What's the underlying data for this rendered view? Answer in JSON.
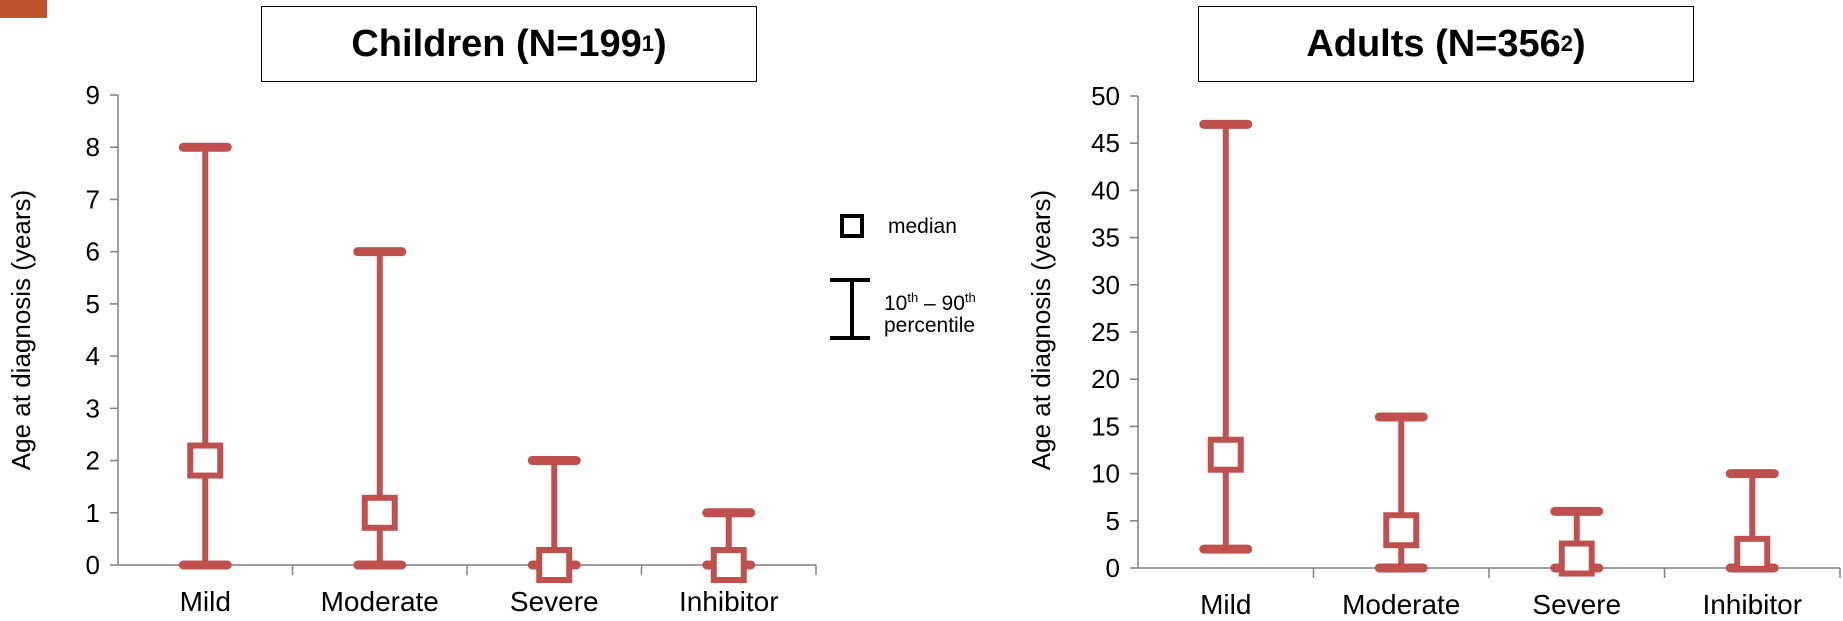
{
  "colors": {
    "series": "#c0504d",
    "axis": "#7f7f7f",
    "accent": "#c0522f"
  },
  "legend": {
    "median_label": "median",
    "range_label_pre1": "10",
    "range_label_sup1": "th",
    "range_label_mid": " – 90",
    "range_label_sup2": "th",
    "range_label_line2": "percentile"
  },
  "chart_data": [
    {
      "type": "errorbar",
      "title_main": "Children (N=199",
      "title_sup": "1",
      "title_end": ")",
      "xlabel": "",
      "ylabel": "Age at diagnosis (years)",
      "ylim": [
        0,
        9
      ],
      "yticks": [
        "0",
        "1",
        "2",
        "3",
        "4",
        "5",
        "6",
        "7",
        "8",
        "9"
      ],
      "categories": [
        "Mild",
        "Moderate",
        "Severe",
        "Inhibitor"
      ],
      "median": [
        2,
        1,
        0,
        0
      ],
      "p10": [
        0,
        0,
        0,
        0
      ],
      "p90": [
        8,
        6,
        2,
        1
      ]
    },
    {
      "type": "errorbar",
      "title_main": "Adults (N=356",
      "title_sup": "2",
      "title_end": ")",
      "xlabel": "",
      "ylabel": "Age at diagnosis (years)",
      "ylim": [
        0,
        50
      ],
      "yticks": [
        "0",
        "5",
        "10",
        "15",
        "20",
        "25",
        "30",
        "35",
        "40",
        "45",
        "50"
      ],
      "categories": [
        "Mild",
        "Moderate",
        "Severe",
        "Inhibitor"
      ],
      "median": [
        12,
        4,
        1,
        1.5
      ],
      "p10": [
        2,
        0,
        0,
        0
      ],
      "p90": [
        47,
        16,
        6,
        10
      ]
    }
  ]
}
